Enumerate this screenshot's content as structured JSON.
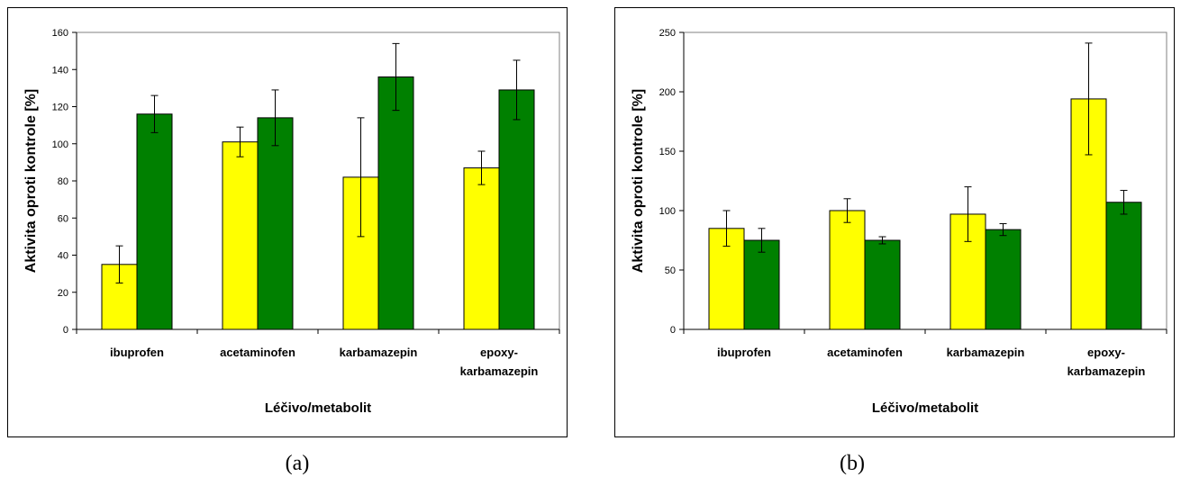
{
  "panel_labels": [
    "(a)",
    "(b)"
  ],
  "chart_data": [
    {
      "type": "bar",
      "panel": "(a)",
      "title": "",
      "xlabel": "Léčivo/metabolit",
      "ylabel": "Aktivita oproti kontrole [%]",
      "ylim": [
        0,
        160
      ],
      "yticks": [
        0,
        20,
        40,
        60,
        80,
        100,
        120,
        140,
        160
      ],
      "categories": [
        [
          "ibuprofen"
        ],
        [
          "acetaminofen"
        ],
        [
          "karbamazepin"
        ],
        [
          "epoxy-",
          "karbamazepin"
        ]
      ],
      "grid": false,
      "legend": "none",
      "series": [
        {
          "color": "#ffff00",
          "values": [
            35,
            101,
            82,
            87
          ],
          "errors": [
            10,
            8,
            32,
            9
          ]
        },
        {
          "color": "#008000",
          "values": [
            116,
            114,
            136,
            129
          ],
          "errors": [
            10,
            15,
            18,
            16
          ]
        }
      ]
    },
    {
      "type": "bar",
      "panel": "(b)",
      "title": "",
      "xlabel": "Léčivo/metabolit",
      "ylabel": "Aktivita oproti kontrole [%]",
      "ylim": [
        0,
        250
      ],
      "yticks": [
        0,
        50,
        100,
        150,
        200,
        250
      ],
      "categories": [
        [
          "ibuprofen"
        ],
        [
          "acetaminofen"
        ],
        [
          "karbamazepin"
        ],
        [
          "epoxy-",
          "karbamazepin"
        ]
      ],
      "grid": false,
      "legend": "none",
      "series": [
        {
          "color": "#ffff00",
          "values": [
            85,
            100,
            97,
            194
          ],
          "errors": [
            15,
            10,
            23,
            47
          ]
        },
        {
          "color": "#008000",
          "values": [
            75,
            75,
            84,
            107
          ],
          "errors": [
            10,
            3,
            5,
            10
          ]
        }
      ]
    }
  ]
}
